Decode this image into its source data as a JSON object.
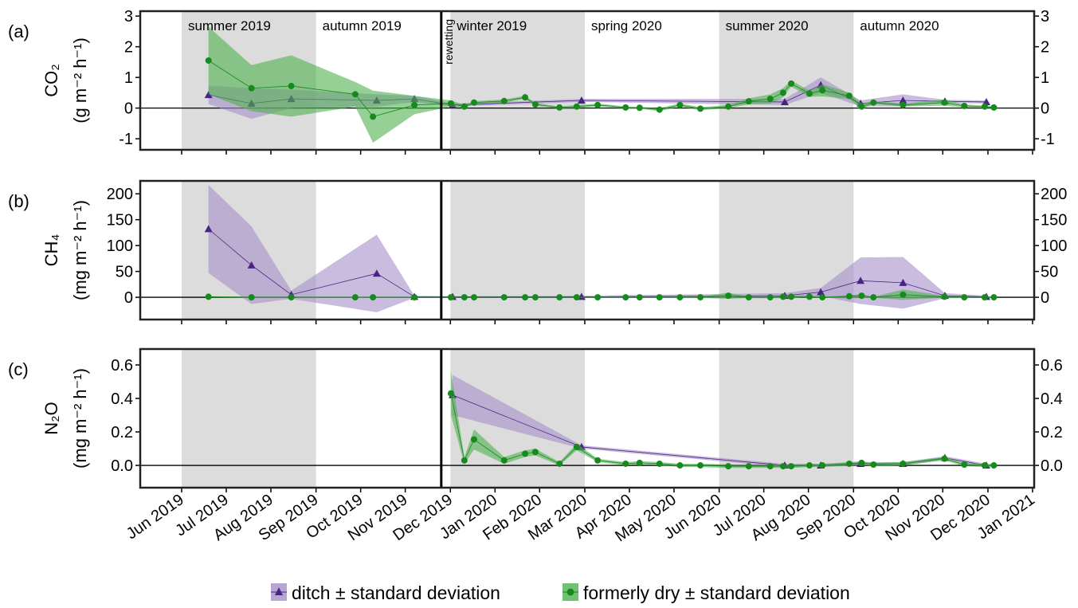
{
  "chart_data": [
    {
      "type": "line",
      "panel_label": "(a)",
      "ylabel": [
        "CO₂",
        "(g m⁻² h⁻¹)"
      ],
      "xlim": [
        2019.34,
        2021.003
      ],
      "ylim": [
        -1.36,
        3.16
      ],
      "yticks": [
        -1,
        0,
        1,
        2,
        3
      ],
      "hline": 0,
      "seasons": [
        {
          "label": "summer 2019",
          "start": 2019.417,
          "end": 2019.667,
          "shaded": true
        },
        {
          "label": "autumn 2019",
          "start": 2019.667,
          "end": 2019.917,
          "shaded": false
        },
        {
          "label": "winter 2019",
          "start": 2019.917,
          "end": 2020.167,
          "shaded": true
        },
        {
          "label": "spring 2020",
          "start": 2020.167,
          "end": 2020.417,
          "shaded": false
        },
        {
          "label": "summer 2020",
          "start": 2020.417,
          "end": 2020.667,
          "shaded": true
        },
        {
          "label": "autumn 2020",
          "start": 2020.667,
          "end": 2020.917,
          "shaded": false
        }
      ],
      "annotations": [
        {
          "text": "rewetting",
          "x": 2019.9
        }
      ],
      "series": [
        {
          "name": "ditch ± standard deviation",
          "marker": "triangle",
          "color": "#4b2483",
          "band_color": "#a58fc8",
          "x": [
            2019.467,
            2019.547,
            2019.621,
            2019.78,
            2019.85,
            2019.921,
            2020.161,
            2020.539,
            2020.606,
            2020.68,
            2020.759,
            2020.837,
            2020.914
          ],
          "values": [
            0.43,
            0.15,
            0.3,
            0.25,
            0.3,
            0.1,
            0.25,
            0.2,
            0.75,
            0.15,
            0.25,
            0.22,
            0.2
          ],
          "sd": [
            0.3,
            0.5,
            0.3,
            0.2,
            0.1,
            0.05,
            0.05,
            0.1,
            0.25,
            0.1,
            0.2,
            0.05,
            0.05
          ]
        },
        {
          "name": "formerly dry ± standard deviation",
          "marker": "circle",
          "color": "#168a1c",
          "band_color": "#4fb04f",
          "x": [
            2019.467,
            2019.547,
            2019.621,
            2019.74,
            2019.773,
            2019.85,
            2019.918,
            2019.943,
            2019.961,
            2020.017,
            2020.056,
            2020.075,
            2020.12,
            2020.152,
            2020.191,
            2020.243,
            2020.269,
            2020.306,
            2020.344,
            2020.382,
            2020.434,
            2020.472,
            2020.512,
            2020.536,
            2020.551,
            2020.585,
            2020.609,
            2020.659,
            2020.682,
            2020.704,
            2020.759,
            2020.836,
            2020.873,
            2020.911,
            2020.928
          ],
          "values": [
            1.55,
            0.65,
            0.72,
            0.45,
            -0.28,
            0.1,
            0.15,
            0.05,
            0.18,
            0.23,
            0.35,
            0.12,
            0.02,
            0.05,
            0.1,
            0.02,
            0.01,
            -0.05,
            0.1,
            -0.02,
            0.05,
            0.22,
            0.3,
            0.5,
            0.8,
            0.47,
            0.58,
            0.4,
            0.05,
            0.18,
            0.1,
            0.18,
            0.07,
            0.05,
            0.02
          ],
          "sd": [
            1.1,
            0.75,
            1.0,
            0.4,
            0.85,
            0.3,
            0.1,
            0.05,
            0.05,
            0.05,
            0.05,
            0.05,
            0.03,
            0.05,
            0.05,
            0.03,
            0.03,
            0.05,
            0.05,
            0.05,
            0.05,
            0.1,
            0.15,
            0.15,
            0.1,
            0.1,
            0.2,
            0.1,
            0.1,
            0.05,
            0.05,
            0.1,
            0.05,
            0.03,
            0.03
          ]
        }
      ]
    },
    {
      "type": "line",
      "panel_label": "(b)",
      "ylabel": [
        "CH₄",
        "(mg m⁻² h⁻¹)"
      ],
      "xlim": [
        2019.34,
        2021.003
      ],
      "ylim": [
        -43,
        225
      ],
      "yticks": [
        0,
        50,
        100,
        150,
        200
      ],
      "hline": 0,
      "series": [
        {
          "marker": "triangle",
          "color": "#4b2483",
          "band_color": "#a58fc8",
          "x": [
            2019.467,
            2019.547,
            2019.621,
            2019.78,
            2019.85,
            2019.921,
            2020.161,
            2020.539,
            2020.606,
            2020.68,
            2020.759,
            2020.837,
            2020.914
          ],
          "values": [
            132,
            62,
            5,
            46,
            1,
            1,
            1,
            3,
            10,
            32,
            28,
            3,
            1
          ],
          "sd": [
            85,
            75,
            8,
            75,
            2,
            1,
            2,
            5,
            8,
            45,
            50,
            5,
            2
          ]
        },
        {
          "marker": "circle",
          "color": "#168a1c",
          "band_color": "#4fb04f",
          "x": [
            2019.467,
            2019.547,
            2019.621,
            2019.74,
            2019.773,
            2019.85,
            2019.918,
            2019.943,
            2019.961,
            2020.017,
            2020.056,
            2020.075,
            2020.12,
            2020.152,
            2020.191,
            2020.243,
            2020.269,
            2020.306,
            2020.344,
            2020.382,
            2020.434,
            2020.472,
            2020.512,
            2020.536,
            2020.551,
            2020.585,
            2020.609,
            2020.659,
            2020.682,
            2020.704,
            2020.759,
            2020.836,
            2020.873,
            2020.911,
            2020.928
          ],
          "values": [
            1,
            0,
            0,
            0,
            0,
            0,
            0,
            0,
            0,
            0,
            0,
            0,
            0,
            0,
            0,
            0,
            0,
            0,
            0,
            0,
            3,
            0,
            0,
            1,
            1,
            1,
            0,
            2,
            3,
            0,
            5,
            1,
            0,
            0,
            0
          ],
          "sd": [
            1,
            1,
            1,
            1,
            1,
            1,
            1,
            1,
            1,
            1,
            1,
            1,
            1,
            1,
            1,
            1,
            1,
            1,
            1,
            1,
            6,
            1,
            1,
            2,
            2,
            2,
            1,
            2,
            3,
            1,
            10,
            2,
            1,
            1,
            1
          ]
        }
      ]
    },
    {
      "type": "line",
      "panel_label": "(c)",
      "ylabel": [
        "N₂O",
        "(mg m⁻² h⁻¹)"
      ],
      "xlim": [
        2019.34,
        2021.003
      ],
      "ylim": [
        -0.133,
        0.695
      ],
      "yticks": [
        {
          "value": 0,
          "label": "0.0"
        },
        0.2,
        0.4,
        0.6
      ],
      "hline": 0,
      "xticks": [
        {
          "value": 2019.417,
          "label": "Jun 2019"
        },
        {
          "value": 2019.5,
          "label": "Jul 2019"
        },
        {
          "value": 2019.583,
          "label": "Aug 2019"
        },
        {
          "value": 2019.667,
          "label": "Sep 2019"
        },
        {
          "value": 2019.75,
          "label": "Oct 2019"
        },
        {
          "value": 2019.833,
          "label": "Nov 2019"
        },
        {
          "value": 2019.917,
          "label": "Dec 2019"
        },
        {
          "value": 2020,
          "label": "Jan 2020"
        },
        {
          "value": 2020.083,
          "label": "Feb 2020"
        },
        {
          "value": 2020.167,
          "label": "Mar 2020"
        },
        {
          "value": 2020.25,
          "label": "Apr 2020"
        },
        {
          "value": 2020.333,
          "label": "May 2020"
        },
        {
          "value": 2020.417,
          "label": "Jun 2020"
        },
        {
          "value": 2020.5,
          "label": "Jul 2020"
        },
        {
          "value": 2020.583,
          "label": "Aug 2020"
        },
        {
          "value": 2020.667,
          "label": "Sep 2020"
        },
        {
          "value": 2020.75,
          "label": "Oct 2020"
        },
        {
          "value": 2020.833,
          "label": "Nov 2020"
        },
        {
          "value": 2020.917,
          "label": "Dec 2020"
        },
        {
          "value": 2021,
          "label": "Jan 2021"
        }
      ],
      "series": [
        {
          "marker": "triangle",
          "color": "#4b2483",
          "band_color": "#a58fc8",
          "x": [
            2019.467,
            2019.547,
            2019.621,
            2019.78,
            2019.85,
            2019.921,
            2020.161,
            2020.539,
            2020.606,
            2020.68,
            2020.759,
            2020.837,
            2020.914
          ],
          "values": [
            null,
            null,
            null,
            null,
            null,
            0.42,
            0.11,
            0,
            0,
            0.01,
            0.01,
            0.045,
            0
          ],
          "sd": [
            null,
            null,
            null,
            null,
            null,
            0.12,
            0.01,
            0.01,
            0.01,
            0.01,
            0.01,
            0.01,
            0.01
          ]
        },
        {
          "marker": "circle",
          "color": "#168a1c",
          "band_color": "#4fb04f",
          "x": [
            2019.467,
            2019.547,
            2019.621,
            2019.74,
            2019.773,
            2019.85,
            2019.918,
            2019.943,
            2019.961,
            2020.017,
            2020.056,
            2020.075,
            2020.12,
            2020.152,
            2020.191,
            2020.243,
            2020.269,
            2020.306,
            2020.344,
            2020.382,
            2020.434,
            2020.472,
            2020.512,
            2020.536,
            2020.551,
            2020.585,
            2020.609,
            2020.659,
            2020.682,
            2020.704,
            2020.759,
            2020.836,
            2020.873,
            2020.911,
            2020.928
          ],
          "values": [
            null,
            null,
            null,
            null,
            null,
            null,
            0.43,
            0.03,
            0.155,
            0.03,
            0.07,
            0.08,
            0.01,
            0.11,
            0.03,
            0.01,
            0.015,
            0.01,
            0,
            0,
            -0.005,
            -0.005,
            -0.005,
            -0.005,
            -0.005,
            0,
            0,
            0.01,
            0.015,
            0.005,
            0.01,
            0.04,
            0.005,
            0,
            0
          ],
          "sd": [
            null,
            null,
            null,
            null,
            null,
            null,
            0.13,
            0.02,
            0.06,
            0.02,
            0.02,
            0.02,
            0.01,
            0.02,
            0.01,
            0.01,
            0.01,
            0.01,
            0.01,
            0.01,
            0.01,
            0.01,
            0.01,
            0.01,
            0.01,
            0.01,
            0.01,
            0.01,
            0.01,
            0.01,
            0.01,
            0.01,
            0.01,
            0.01,
            0.01
          ]
        }
      ]
    }
  ]
}
